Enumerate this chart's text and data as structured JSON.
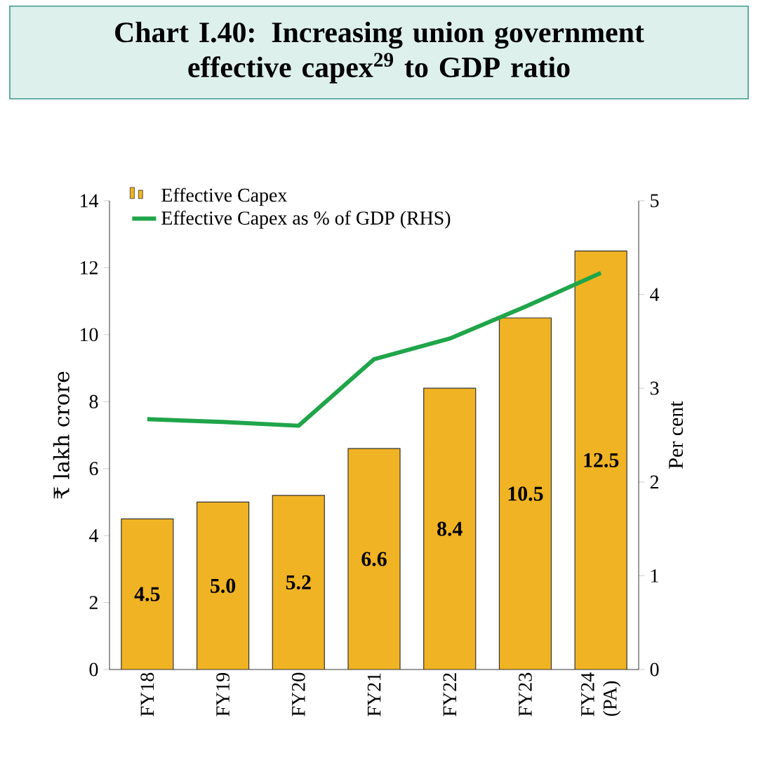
{
  "chart_data": {
    "type": "bar",
    "title": "Chart I.40: Increasing union government effective capex$^{29}$ to GDP ratio",
    "categories": [
      "FY18",
      "FY19",
      "FY20",
      "FY21",
      "FY22",
      "FY23",
      "FY24 (PA)"
    ],
    "series": [
      {
        "name": "Effective Capex",
        "color": "#f0b323",
        "values": [
          4.5,
          5.0,
          5.2,
          6.6,
          8.4,
          10.5,
          12.5
        ],
        "value_labels": [
          "4.5",
          "5.0",
          "5.2",
          "6.6",
          "8.4",
          "10.5",
          "12.5"
        ]
      },
      {
        "name": "Effective Capex as % of GDP (RHS)",
        "type": "line",
        "axis": "y2",
        "color": "#1fa54a",
        "values": [
          2.67,
          2.64,
          2.6,
          3.31,
          3.53,
          3.87,
          4.23
        ]
      }
    ],
    "ylabel": "₹ lakh crore",
    "y2label": "Per cent",
    "ylim": [
      0,
      14
    ],
    "yticks": [
      0,
      2,
      4,
      6,
      8,
      10,
      12,
      14
    ],
    "y2lim": [
      0,
      5
    ],
    "y2ticks": [
      0,
      1,
      2,
      3,
      4,
      5
    ],
    "legend": "top left",
    "marker": "none",
    "grid": false
  }
}
